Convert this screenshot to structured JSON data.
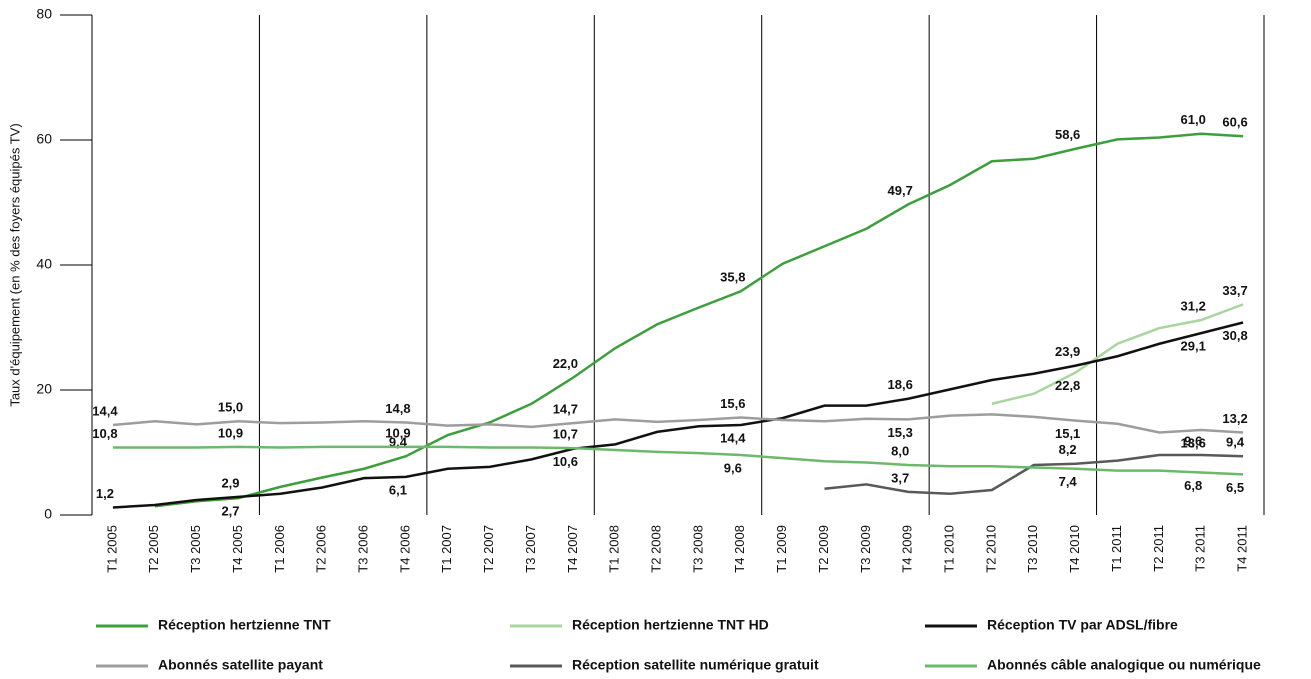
{
  "chart_data": {
    "type": "line",
    "y_label": "Taux d'équipement (en % des foyers équipés TV)",
    "categories": [
      "T1 2005",
      "T2 2005",
      "T3 2005",
      "T4 2005",
      "T1 2006",
      "T2 2006",
      "T3 2006",
      "T4 2006",
      "T1 2007",
      "T2 2007",
      "T3 2007",
      "T4 2007",
      "T1 2008",
      "T2 2008",
      "T3 2008",
      "T4 2008",
      "T1 2009",
      "T2 2009",
      "T3 2009",
      "T4 2009",
      "T1 2010",
      "T2 2010",
      "T3 2010",
      "T4 2010",
      "T1 2011",
      "T2 2011",
      "T3 2011",
      "T4 2011"
    ],
    "ylim": [
      0,
      80
    ],
    "yticks": [
      0,
      20,
      40,
      60,
      80
    ],
    "series": [
      {
        "name": "Réception hertzienne TNT",
        "color": "#3c9f3c",
        "values": [
          null,
          1.4,
          2.2,
          2.7,
          4.5,
          6.0,
          7.4,
          9.4,
          12.8,
          14.8,
          17.8,
          22.0,
          26.7,
          30.5,
          33.2,
          35.8,
          40.2,
          43.0,
          45.8,
          49.7,
          52.8,
          56.6,
          57.0,
          58.6,
          60.1,
          60.4,
          61.0,
          60.6
        ],
        "value_labels": [
          null,
          null,
          null,
          "2,7",
          null,
          null,
          null,
          "9,4",
          null,
          null,
          null,
          "22,0",
          null,
          null,
          null,
          "35,8",
          null,
          null,
          null,
          "49,7",
          null,
          null,
          null,
          "58,6",
          null,
          null,
          "61,0",
          "60,6"
        ]
      },
      {
        "name": "Réception hertzienne TNT HD",
        "color": "#a9d59f",
        "values": [
          null,
          null,
          null,
          null,
          null,
          null,
          null,
          null,
          null,
          null,
          null,
          null,
          null,
          null,
          null,
          null,
          null,
          null,
          null,
          null,
          null,
          17.8,
          19.4,
          22.8,
          27.4,
          29.9,
          31.2,
          33.7
        ],
        "value_labels": [
          null,
          null,
          null,
          null,
          null,
          null,
          null,
          null,
          null,
          null,
          null,
          null,
          null,
          null,
          null,
          null,
          null,
          null,
          null,
          null,
          null,
          null,
          null,
          "22,8",
          null,
          null,
          "31,2",
          "33,7"
        ]
      },
      {
        "name": "Réception TV par ADSL/fibre",
        "color": "#111111",
        "values": [
          1.2,
          1.6,
          2.4,
          2.9,
          3.4,
          4.4,
          5.9,
          6.1,
          7.4,
          7.7,
          8.9,
          10.6,
          11.3,
          13.3,
          14.2,
          14.4,
          15.5,
          17.5,
          17.5,
          18.6,
          20.1,
          21.6,
          22.6,
          23.9,
          25.4,
          27.4,
          29.1,
          30.8
        ],
        "value_labels": [
          "1,2",
          null,
          null,
          "2,9",
          null,
          null,
          null,
          "6,1",
          null,
          null,
          null,
          "10,6",
          null,
          null,
          null,
          "14,4",
          null,
          null,
          null,
          "18,6",
          null,
          null,
          null,
          "23,9",
          null,
          null,
          "29,1",
          "30,8"
        ]
      },
      {
        "name": "Abonnés satellite payant",
        "color": "#9d9d9d",
        "values": [
          14.4,
          15.0,
          14.5,
          15.0,
          14.7,
          14.8,
          15.0,
          14.8,
          14.3,
          14.5,
          14.1,
          14.7,
          15.3,
          14.9,
          15.2,
          15.6,
          15.2,
          15.0,
          15.4,
          15.3,
          15.9,
          16.1,
          15.7,
          15.1,
          14.6,
          13.2,
          13.6,
          13.2
        ],
        "value_labels": [
          "14,4",
          null,
          null,
          "15,0",
          null,
          null,
          null,
          "14,8",
          null,
          null,
          null,
          "14,7",
          null,
          null,
          null,
          "15,6",
          null,
          null,
          null,
          "15,3",
          null,
          null,
          null,
          "15,1",
          null,
          null,
          "13,6",
          "13,2"
        ]
      },
      {
        "name": "Réception satellite numérique gratuit",
        "color": "#595959",
        "values": [
          null,
          null,
          null,
          null,
          null,
          null,
          null,
          null,
          null,
          null,
          null,
          null,
          null,
          null,
          null,
          null,
          null,
          4.2,
          4.9,
          3.7,
          3.4,
          4.0,
          8.0,
          8.2,
          8.7,
          9.6,
          9.6,
          9.4
        ],
        "value_labels": [
          null,
          null,
          null,
          null,
          null,
          null,
          null,
          null,
          null,
          null,
          null,
          null,
          null,
          null,
          null,
          null,
          null,
          null,
          null,
          "3,7",
          null,
          null,
          null,
          "8,2",
          null,
          null,
          "9,6",
          "9,4"
        ]
      },
      {
        "name": "Abonnés câble analogique ou numérique",
        "color": "#6cb96c",
        "values": [
          10.8,
          10.8,
          10.8,
          10.9,
          10.8,
          10.9,
          10.9,
          10.9,
          10.9,
          10.8,
          10.8,
          10.7,
          10.4,
          10.1,
          9.9,
          9.6,
          9.1,
          8.6,
          8.4,
          8.0,
          7.8,
          7.8,
          7.6,
          7.4,
          7.1,
          7.1,
          6.8,
          6.5
        ],
        "value_labels": [
          "10,8",
          null,
          null,
          "10,9",
          null,
          null,
          null,
          "10,9",
          null,
          null,
          null,
          "10,7",
          null,
          null,
          null,
          "9,6",
          null,
          null,
          null,
          "8,0",
          null,
          null,
          null,
          "7,4",
          null,
          null,
          "6,8",
          "6,5"
        ]
      }
    ]
  }
}
